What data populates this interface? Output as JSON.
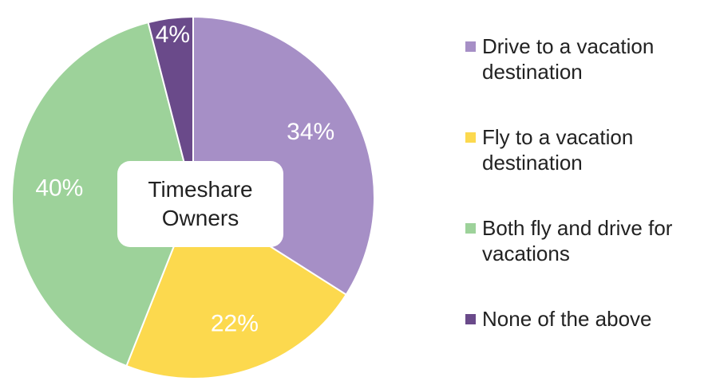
{
  "chart_data": {
    "type": "pie",
    "center_label": "Timeshare Owners",
    "categories": [
      "Drive to a vacation destination",
      "Fly to a vacation destination",
      "Both fly and drive for vacations",
      "None of the above"
    ],
    "values": [
      34,
      22,
      40,
      4
    ],
    "value_labels": [
      "34%",
      "22%",
      "40%",
      "4%"
    ],
    "colors": [
      "#a68fc6",
      "#fcd94e",
      "#9dd29a",
      "#6a4a8a"
    ],
    "legend": "right"
  }
}
